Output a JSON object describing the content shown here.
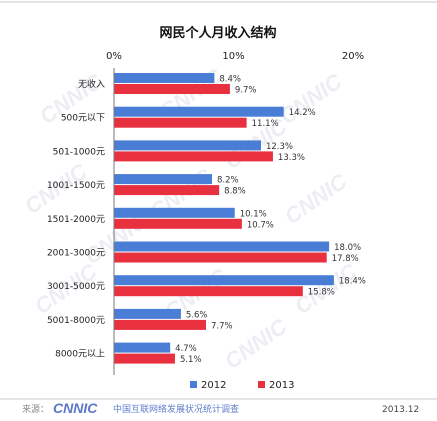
{
  "chart_data": {
    "type": "bar",
    "orientation": "horizontal",
    "title": "网民个人月收入结构",
    "categories": [
      "无收入",
      "500元以下",
      "501-1000元",
      "1001-1500元",
      "1501-2000元",
      "2001-3000元",
      "3001-5000元",
      "5001-8000元",
      "8000元以上"
    ],
    "series": [
      {
        "name": "2012",
        "color": "#4a7ed6",
        "values": [
          8.4,
          14.2,
          12.3,
          8.2,
          10.1,
          18.0,
          18.4,
          5.6,
          4.7
        ]
      },
      {
        "name": "2013",
        "color": "#e8303f",
        "values": [
          9.7,
          11.1,
          13.3,
          8.8,
          10.7,
          17.8,
          15.8,
          7.7,
          5.1
        ]
      }
    ],
    "value_labels": {
      "2012": [
        "8.4%",
        "14.2%",
        "12.3%",
        "8.2%",
        "10.1%",
        "18.0%",
        "18.4%",
        "5.6%",
        "4.7%"
      ],
      "2013": [
        "9.7%",
        "11.1%",
        "13.3%",
        "8.8%",
        "10.7%",
        "17.8%",
        "15.8%",
        "7.7%",
        "5.1%"
      ]
    },
    "xlim": [
      0,
      20
    ],
    "ticks": [
      0,
      10,
      20
    ],
    "tick_labels": [
      "0%",
      "10%",
      "20%"
    ],
    "grid": false,
    "legend_position": "bottom"
  },
  "footer": {
    "source_label": "来源：",
    "logo_text": "CNNIC",
    "org_text": "中国互联网络发展状况统计调查",
    "date": "2013.12"
  },
  "watermark_text": "CNNIC"
}
